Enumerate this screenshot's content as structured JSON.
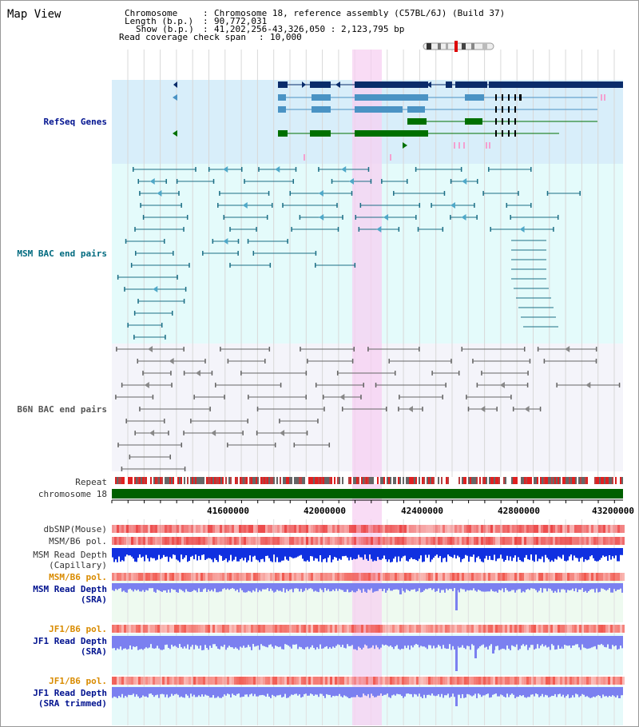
{
  "view": {
    "title": "Map View"
  },
  "info": {
    "chromosome_label": "Chromosome",
    "chromosome_value": "Chromosome 18, reference assembly (C57BL/6J) (Build 37)",
    "length_label": "Length (b.p.)",
    "length_value": "90,772,031",
    "show_label": "Show (b.p.)",
    "show_value": "41,202,256-43,326,050 : 2,123,795 bp",
    "coverage_label": "Read coverage check span",
    "coverage_value": "10,000",
    "sep": ":"
  },
  "tracks": {
    "refseq": "RefSeq Genes",
    "msm_bac": "MSM BAC end pairs",
    "b6n_bac": "B6N BAC end pairs",
    "repeat": "Repeat",
    "chromosome": "chromosome 18",
    "dbsnp": "dbSNP(Mouse)",
    "msm_b6_pol": "MSM/B6 pol.",
    "msm_read_depth_cap": "MSM Read Depth\n(Capillary)",
    "msm_b6_pol2": "MSM/B6 pol.",
    "msm_read_depth_sra": "MSM Read Depth\n(SRA)",
    "jf1_b6_pol": "JF1/B6 pol.",
    "jf1_read_depth_sra": "JF1 Read Depth\n(SRA)",
    "jf1_b6_pol2": "JF1/B6 pol.",
    "jf1_read_depth_trim": "JF1 Read Depth\n(SRA trimmed)"
  },
  "axis": {
    "ticks": [
      "41600000",
      "42000000",
      "42400000",
      "42800000",
      "43200000"
    ]
  },
  "colors": {
    "refseq_bg": "#d8eefa",
    "msm_bg": "#e4fbfb",
    "b6n_bg": "#f4f4fa",
    "highlight": "#f7d0f2",
    "gene_dark": "#0a2c6a",
    "gene_mid": "#4a93c4",
    "gene_green": "#007000",
    "msm_line": "#1d6f86",
    "b6n_line": "#666666",
    "depth_blue": "#1030e0",
    "depth_light": "#7b80f0"
  }
}
